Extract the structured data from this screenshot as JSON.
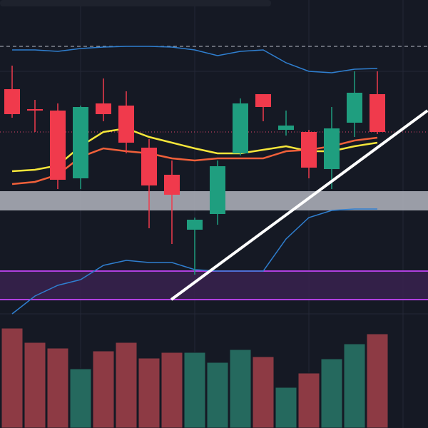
{
  "chart_data": [
    {
      "type": "candlestick",
      "categories": [
        null,
        null,
        null,
        null,
        null,
        null,
        null,
        null,
        null,
        null,
        null,
        null,
        null,
        null,
        null,
        null,
        null
      ],
      "open": [
        475,
        447,
        445,
        350,
        455,
        452,
        393,
        355,
        278,
        300,
        385,
        468,
        418,
        415,
        363,
        428,
        468
      ],
      "close": [
        440,
        445,
        348,
        450,
        440,
        400,
        340,
        327,
        292,
        367,
        455,
        450,
        424,
        365,
        420,
        470,
        415
      ],
      "high": [
        508,
        460,
        455,
        452,
        490,
        472,
        405,
        375,
        295,
        375,
        462,
        468,
        445,
        418,
        450,
        500,
        500
      ],
      "low": [
        435,
        415,
        335,
        335,
        430,
        385,
        280,
        258,
        215,
        285,
        382,
        430,
        410,
        350,
        335,
        408,
        412
      ],
      "up_color": "#1f9e7f",
      "down_color": "#f03a4c",
      "ylim": [
        150,
        600
      ],
      "overlays": [
        {
          "color": "#f5e63a",
          "values": [
            360,
            362,
            368,
            395,
            415,
            420,
            408,
            400,
            392,
            385,
            385,
            390,
            395,
            388,
            388,
            395,
            400
          ]
        },
        {
          "color": "#f0603a",
          "values": [
            342,
            345,
            355,
            380,
            392,
            388,
            385,
            378,
            375,
            378,
            378,
            378,
            388,
            390,
            395,
            403,
            407
          ]
        },
        {
          "color": "#2f7fd0",
          "values": [
            530,
            530,
            528,
            532,
            534,
            535,
            535,
            534,
            530,
            522,
            528,
            530,
            512,
            500,
            498,
            503,
            504
          ]
        },
        {
          "color": "#2f7fd0",
          "values": [
            160,
            185,
            200,
            208,
            228,
            235,
            232,
            232,
            222,
            220,
            220,
            220,
            265,
            295,
            305,
            307,
            307
          ]
        }
      ],
      "levels": [
        {
          "value": 535,
          "color": "#b8bcc6",
          "dash": "5 4"
        },
        {
          "value": 415,
          "color": "#e0436a",
          "dash": "1 3"
        }
      ],
      "zones": [
        {
          "from": 305,
          "to": 332,
          "color": "#b2b5be"
        },
        {
          "from": 180,
          "to": 220,
          "color": "#36214d",
          "edge": "#b040e0"
        }
      ],
      "trendline": {
        "x": [
          6.97,
          18.2
        ],
        "y": [
          180,
          445
        ],
        "color": "#ffffff"
      }
    },
    {
      "type": "bar",
      "categories": [
        null,
        null,
        null,
        null,
        null,
        null,
        null,
        null,
        null,
        null,
        null,
        null,
        null,
        null,
        null,
        null,
        null
      ],
      "values": [
        140,
        120,
        112,
        83,
        108,
        120,
        98,
        106,
        106,
        92,
        110,
        100,
        57,
        77,
        97,
        118,
        132
      ],
      "colors": [
        "#8d3a44",
        "#8d3a44",
        "#8d3a44",
        "#25695e",
        "#8d3a44",
        "#8d3a44",
        "#8d3a44",
        "#8d3a44",
        "#25695e",
        "#25695e",
        "#25695e",
        "#8d3a44",
        "#25695e",
        "#8d3a44",
        "#25695e",
        "#25695e",
        "#8d3a44"
      ],
      "ylim": [
        0,
        150
      ]
    }
  ]
}
